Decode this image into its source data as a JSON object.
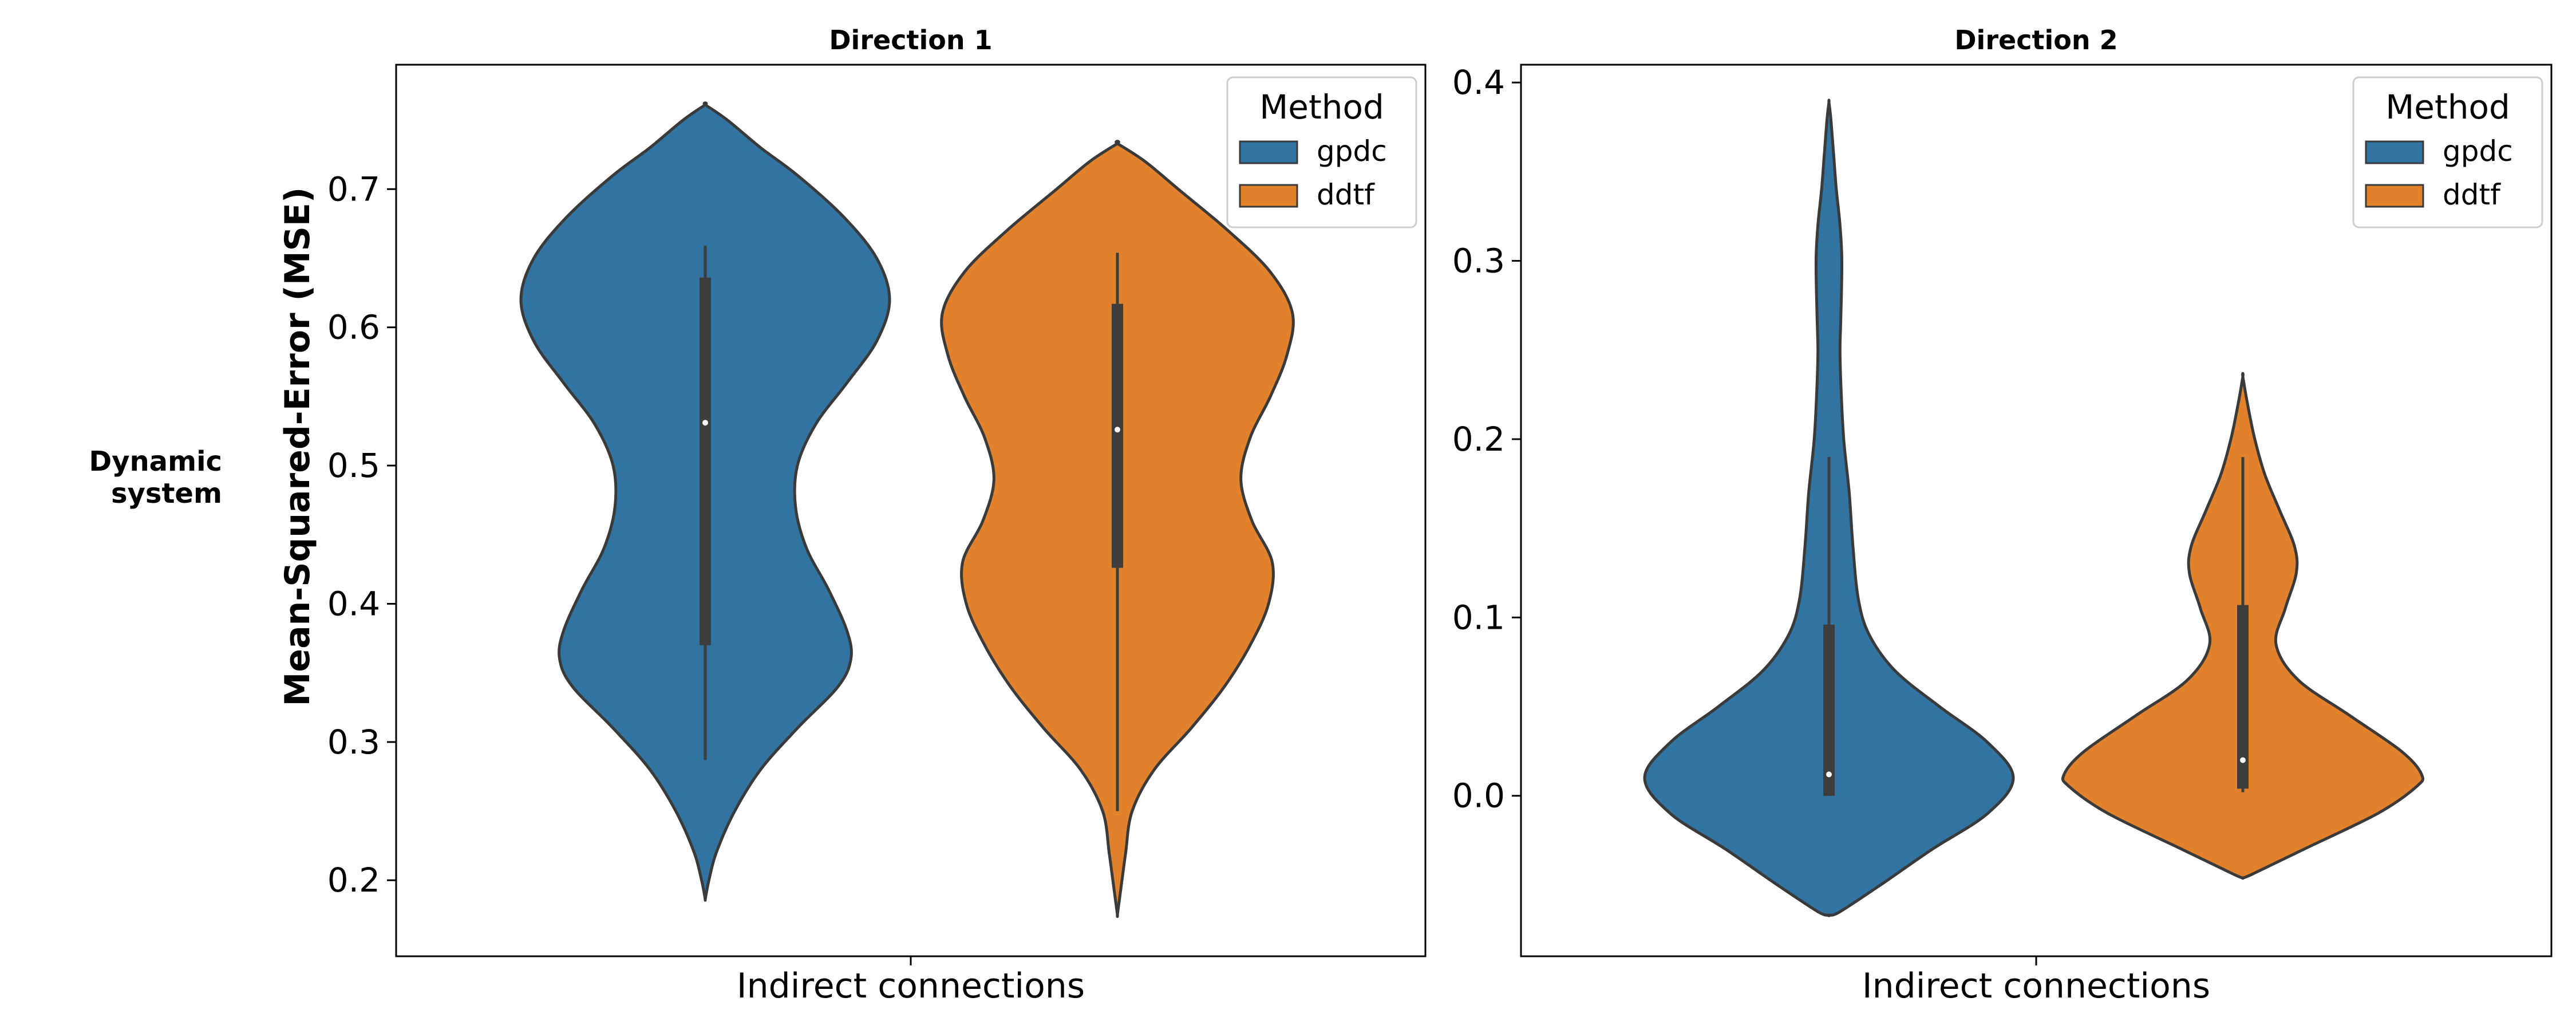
{
  "row_label": [
    "Dynamic",
    "system"
  ],
  "ylabel": "Mean-Squared-Error (MSE)",
  "legend_title": "Method",
  "colors": {
    "gpdc": "#3274a1",
    "ddtf": "#e1812c",
    "edge": "#3a3a3a",
    "box": "#3d3d3d"
  },
  "chart_data": [
    {
      "type": "violin",
      "title": "Direction 1",
      "xlabel": "Indirect connections",
      "x_tick": "Indirect connections",
      "ylim": [
        0.145,
        0.79
      ],
      "yticks": [
        0.2,
        0.3,
        0.4,
        0.5,
        0.6,
        0.7
      ],
      "legend": {
        "title": "Method",
        "entries": [
          "gpdc",
          "ddtf"
        ],
        "position": "top-right"
      },
      "series": [
        {
          "name": "gpdc",
          "min": 0.287,
          "q1": 0.37,
          "median": 0.531,
          "q3": 0.636,
          "max": 0.659,
          "kde_range": [
            0.186,
            0.761
          ],
          "density": [
            [
              0.186,
              0.0
            ],
            [
              0.19,
              0.005
            ],
            [
              0.2,
              0.02
            ],
            [
              0.22,
              0.06
            ],
            [
              0.25,
              0.16
            ],
            [
              0.28,
              0.3
            ],
            [
              0.31,
              0.5
            ],
            [
              0.34,
              0.72
            ],
            [
              0.36,
              0.79
            ],
            [
              0.38,
              0.77
            ],
            [
              0.41,
              0.67
            ],
            [
              0.44,
              0.55
            ],
            [
              0.47,
              0.49
            ],
            [
              0.5,
              0.5
            ],
            [
              0.53,
              0.6
            ],
            [
              0.56,
              0.77
            ],
            [
              0.59,
              0.93
            ],
            [
              0.62,
              1.0
            ],
            [
              0.65,
              0.93
            ],
            [
              0.68,
              0.75
            ],
            [
              0.71,
              0.5
            ],
            [
              0.73,
              0.3
            ],
            [
              0.75,
              0.12
            ],
            [
              0.761,
              0.0
            ]
          ]
        },
        {
          "name": "ddtf",
          "min": 0.25,
          "q1": 0.426,
          "median": 0.526,
          "q3": 0.617,
          "max": 0.654,
          "kde_range": [
            0.175,
            0.733
          ],
          "density": [
            [
              0.175,
              0.0
            ],
            [
              0.185,
              0.01
            ],
            [
              0.2,
              0.025
            ],
            [
              0.22,
              0.045
            ],
            [
              0.25,
              0.08
            ],
            [
              0.28,
              0.2
            ],
            [
              0.31,
              0.4
            ],
            [
              0.34,
              0.58
            ],
            [
              0.37,
              0.72
            ],
            [
              0.4,
              0.82
            ],
            [
              0.43,
              0.84
            ],
            [
              0.46,
              0.73
            ],
            [
              0.49,
              0.67
            ],
            [
              0.52,
              0.72
            ],
            [
              0.55,
              0.83
            ],
            [
              0.58,
              0.92
            ],
            [
              0.61,
              0.95
            ],
            [
              0.64,
              0.83
            ],
            [
              0.67,
              0.6
            ],
            [
              0.7,
              0.33
            ],
            [
              0.72,
              0.15
            ],
            [
              0.733,
              0.0
            ]
          ]
        }
      ]
    },
    {
      "type": "violin",
      "title": "Direction 2",
      "xlabel": "Indirect connections",
      "x_tick": "Indirect connections",
      "ylim": [
        -0.09,
        0.41
      ],
      "yticks": [
        0.0,
        0.1,
        0.2,
        0.3,
        0.4
      ],
      "legend": {
        "title": "Method",
        "entries": [
          "gpdc",
          "ddtf"
        ],
        "position": "top-right"
      },
      "series": [
        {
          "name": "gpdc",
          "min": 0.0,
          "q1": 0.0,
          "median": 0.012,
          "q3": 0.096,
          "max": 0.19,
          "kde_range": [
            -0.067,
            0.389
          ],
          "density": [
            [
              -0.067,
              0.0
            ],
            [
              -0.065,
              0.06
            ],
            [
              -0.05,
              0.28
            ],
            [
              -0.03,
              0.56
            ],
            [
              -0.01,
              0.86
            ],
            [
              0.01,
              1.0
            ],
            [
              0.03,
              0.86
            ],
            [
              0.05,
              0.6
            ],
            [
              0.07,
              0.36
            ],
            [
              0.09,
              0.22
            ],
            [
              0.11,
              0.16
            ],
            [
              0.14,
              0.13
            ],
            [
              0.17,
              0.11
            ],
            [
              0.2,
              0.08
            ],
            [
              0.23,
              0.065
            ],
            [
              0.25,
              0.06
            ],
            [
              0.27,
              0.065
            ],
            [
              0.3,
              0.07
            ],
            [
              0.32,
              0.06
            ],
            [
              0.34,
              0.04
            ],
            [
              0.36,
              0.025
            ],
            [
              0.38,
              0.01
            ],
            [
              0.389,
              0.0
            ]
          ]
        },
        {
          "name": "ddtf",
          "min": 0.002,
          "q1": 0.004,
          "median": 0.02,
          "q3": 0.107,
          "max": 0.19,
          "kde_range": [
            -0.046,
            0.235
          ],
          "density": [
            [
              -0.046,
              0.0
            ],
            [
              -0.044,
              0.05
            ],
            [
              -0.03,
              0.33
            ],
            [
              -0.01,
              0.73
            ],
            [
              0.005,
              0.94
            ],
            [
              0.012,
              0.97
            ],
            [
              0.025,
              0.86
            ],
            [
              0.045,
              0.58
            ],
            [
              0.065,
              0.3
            ],
            [
              0.085,
              0.18
            ],
            [
              0.105,
              0.23
            ],
            [
              0.125,
              0.29
            ],
            [
              0.14,
              0.28
            ],
            [
              0.16,
              0.2
            ],
            [
              0.18,
              0.12
            ],
            [
              0.2,
              0.065
            ],
            [
              0.22,
              0.025
            ],
            [
              0.235,
              0.0
            ]
          ]
        }
      ]
    }
  ]
}
